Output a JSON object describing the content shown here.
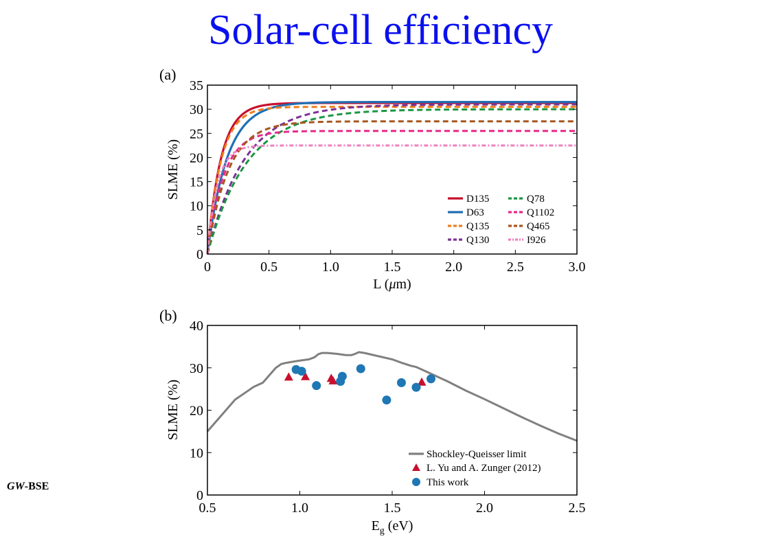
{
  "slide": {
    "title": "Solar-cell efficiency",
    "side_label_italic": "GW",
    "side_label_rest": "-BSE"
  },
  "chart_data": [
    {
      "type": "line",
      "panel": "(a)",
      "xlabel_main": "L (",
      "xlabel_greek": "μ",
      "xlabel_tail": "m)",
      "ylabel": "SLME (%)",
      "xlim": [
        0,
        3.0
      ],
      "ylim": [
        0,
        35
      ],
      "xticks": [
        "0",
        "0.5",
        "1.0",
        "1.5",
        "2.0",
        "2.5",
        "3.0"
      ],
      "yticks": [
        "0",
        "5",
        "10",
        "15",
        "20",
        "25",
        "30",
        "35"
      ],
      "legend_position": "bottom-right",
      "series": [
        {
          "name": "D135",
          "color": "#c8102e",
          "dash": "solid",
          "sat": 31.3,
          "tau": 0.11
        },
        {
          "name": "D63",
          "color": "#1f6fb4",
          "dash": "solid",
          "sat": 31.5,
          "tau": 0.16
        },
        {
          "name": "Q135",
          "color": "#f07d1a",
          "dash": "dashed",
          "sat": 30.5,
          "tau": 0.11
        },
        {
          "name": "Q130",
          "color": "#7b3294",
          "dash": "dashed",
          "sat": 31.0,
          "tau": 0.3
        },
        {
          "name": "Q78",
          "color": "#1a9641",
          "dash": "dashed",
          "sat": 30.0,
          "tau": 0.32
        },
        {
          "name": "Q1102",
          "color": "#e7298a",
          "dash": "dashed",
          "sat": 25.5,
          "tau": 0.13
        },
        {
          "name": "Q465",
          "color": "#a6561e",
          "dash": "dashed",
          "sat": 27.5,
          "tau": 0.17
        },
        {
          "name": "I926",
          "color": "#f07fbf",
          "dash": "dotdash",
          "sat": 22.5,
          "tau": 0.08
        }
      ]
    },
    {
      "type": "scatter",
      "panel": "(b)",
      "xlabel_main": "E",
      "xlabel_sub": "g",
      "xlabel_tail": " (eV)",
      "ylabel": "SLME (%)",
      "xlim": [
        0.5,
        2.5
      ],
      "ylim": [
        0,
        40
      ],
      "xticks": [
        "0.5",
        "1.0",
        "1.5",
        "2.0",
        "2.5"
      ],
      "yticks": [
        "0",
        "10",
        "20",
        "30",
        "40"
      ],
      "legend_position": "bottom-right",
      "sq_limit": {
        "name": "Shockley-Queisser limit",
        "color": "#808080",
        "x": [
          0.5,
          0.6,
          0.65,
          0.7,
          0.75,
          0.8,
          0.83,
          0.87,
          0.9,
          0.93,
          0.97,
          1.0,
          1.05,
          1.08,
          1.1,
          1.12,
          1.15,
          1.2,
          1.25,
          1.28,
          1.3,
          1.32,
          1.35,
          1.4,
          1.5,
          1.55,
          1.6,
          1.63,
          1.7,
          1.8,
          1.9,
          2.0,
          2.1,
          2.2,
          2.3,
          2.4,
          2.5
        ],
        "y": [
          15.0,
          20.0,
          22.5,
          24.0,
          25.5,
          26.5,
          28.0,
          30.0,
          30.9,
          31.2,
          31.5,
          31.7,
          32.0,
          32.5,
          33.2,
          33.5,
          33.5,
          33.3,
          33.0,
          33.0,
          33.3,
          33.7,
          33.5,
          33.0,
          32.0,
          31.2,
          30.5,
          30.2,
          28.8,
          26.8,
          24.6,
          22.6,
          20.5,
          18.4,
          16.4,
          14.5,
          12.8
        ]
      },
      "reference": {
        "name": "L. Yu and A. Zunger (2012)",
        "color": "#c8102e",
        "x": [
          0.94,
          1.03,
          1.17,
          1.18,
          1.66
        ],
        "y": [
          27.8,
          27.9,
          27.5,
          26.9,
          26.6
        ]
      },
      "this_work": {
        "name": "This work",
        "color": "#1f77b4",
        "x": [
          0.98,
          1.01,
          1.09,
          1.22,
          1.23,
          1.33,
          1.47,
          1.55,
          1.63,
          1.71
        ],
        "y": [
          29.6,
          29.2,
          25.8,
          26.8,
          28.0,
          29.8,
          22.4,
          26.5,
          25.4,
          27.4
        ]
      }
    }
  ]
}
